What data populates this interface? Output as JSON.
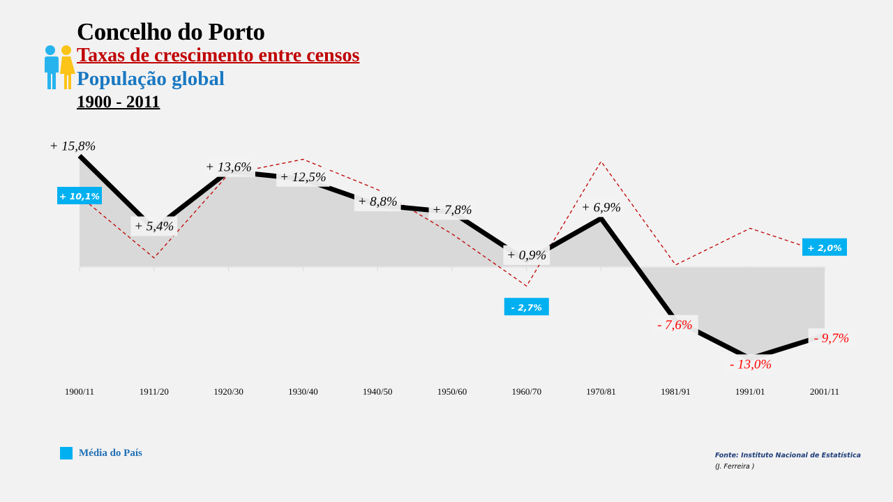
{
  "header": {
    "title": "Concelho do Porto",
    "subtitle": "Taxas de crescimento entre censos",
    "subtitle2": "População global",
    "period": "1900 - 2011",
    "icon": "people-icon"
  },
  "legend": {
    "label": "Média do País",
    "color": "#00b0f0"
  },
  "footer": {
    "source": "Fonte: Instituto Nacional de Estatística",
    "author": "(J. Ferreira )"
  },
  "colors": {
    "porto_line": "#000000",
    "area_fill": "#d9d9d9",
    "national_line": "#c00000",
    "national_label_bg": "#00b0f0",
    "negative_label": "#ff0000",
    "background": "#f2f2f2"
  },
  "chart_data": {
    "type": "line",
    "title": "Concelho do Porto - Taxas de crescimento entre censos - População global (1900 - 2011)",
    "xlabel": "",
    "ylabel": "",
    "categories": [
      "1900/11",
      "1911/20",
      "1920/30",
      "1930/40",
      "1940/50",
      "1950/60",
      "1960/70",
      "1970/81",
      "1981/91",
      "1991/01",
      "2001/11"
    ],
    "series": [
      {
        "name": "Concelho do Porto",
        "style": "solid thick black line with grey area fill",
        "values": [
          15.8,
          5.4,
          13.6,
          12.5,
          8.8,
          7.8,
          0.9,
          6.9,
          -7.6,
          -13.0,
          -9.7
        ],
        "labels": [
          "+ 15,8%",
          "+ 5,4%",
          "+ 13,6%",
          "+ 12,5%",
          "+ 8,8%",
          "+ 7,8%",
          "+ 0,9%",
          "+ 6,9%",
          "- 7,6%",
          "- 13,0%",
          "- 9,7%"
        ]
      },
      {
        "name": "Média do País",
        "style": "dashed red line",
        "values": [
          10.1,
          1.3,
          13.2,
          15.3,
          11.0,
          4.7,
          -2.7,
          15.0,
          0.3,
          5.5,
          2.0
        ],
        "labels": [
          "+ 10,1%",
          null,
          null,
          null,
          null,
          null,
          "- 2,7%",
          null,
          null,
          null,
          "+ 2,0%"
        ]
      }
    ],
    "ylim": [
      -15,
      17
    ],
    "grid": false,
    "legend_position": "bottom-left"
  }
}
